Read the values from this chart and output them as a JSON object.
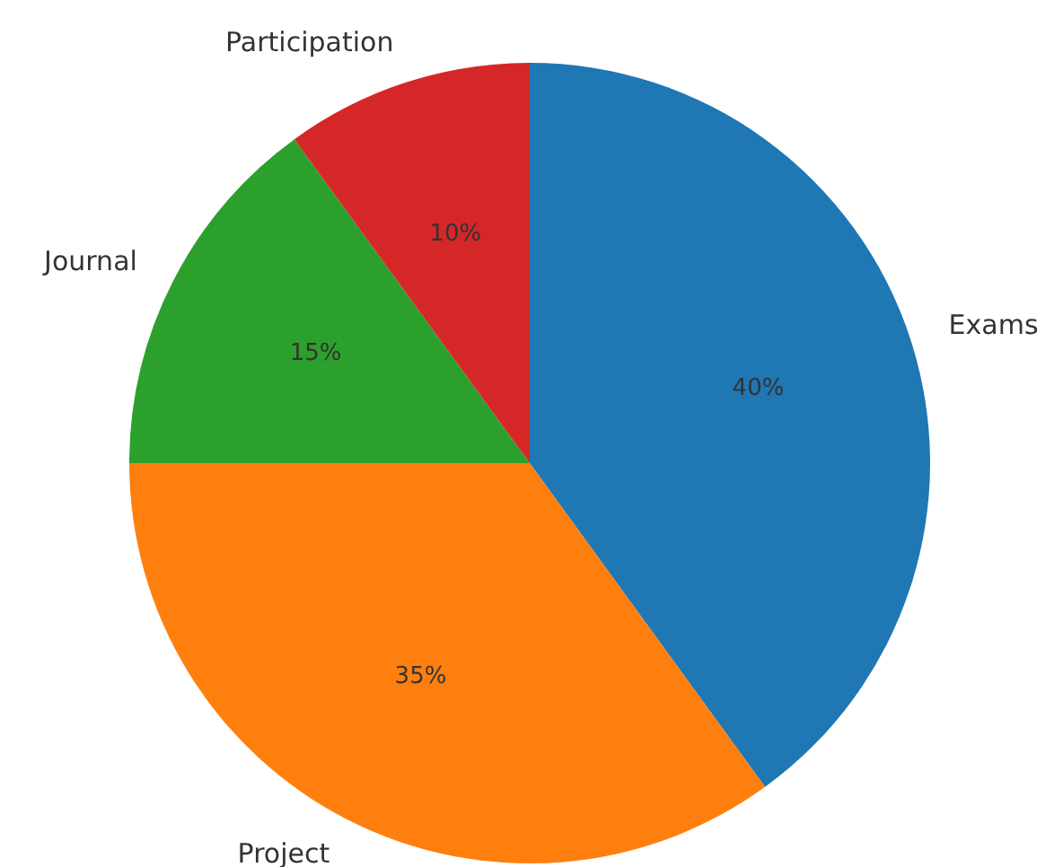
{
  "chart_data": {
    "type": "pie",
    "categories": [
      "Exams",
      "Project",
      "Journal",
      "Participation"
    ],
    "values": [
      40,
      35,
      15,
      10
    ],
    "colors": [
      "#1f77b4",
      "#ff7f0e",
      "#2ca02c",
      "#d62728"
    ],
    "value_labels": [
      "40%",
      "35%",
      "15%",
      "10%"
    ],
    "legend": false
  }
}
